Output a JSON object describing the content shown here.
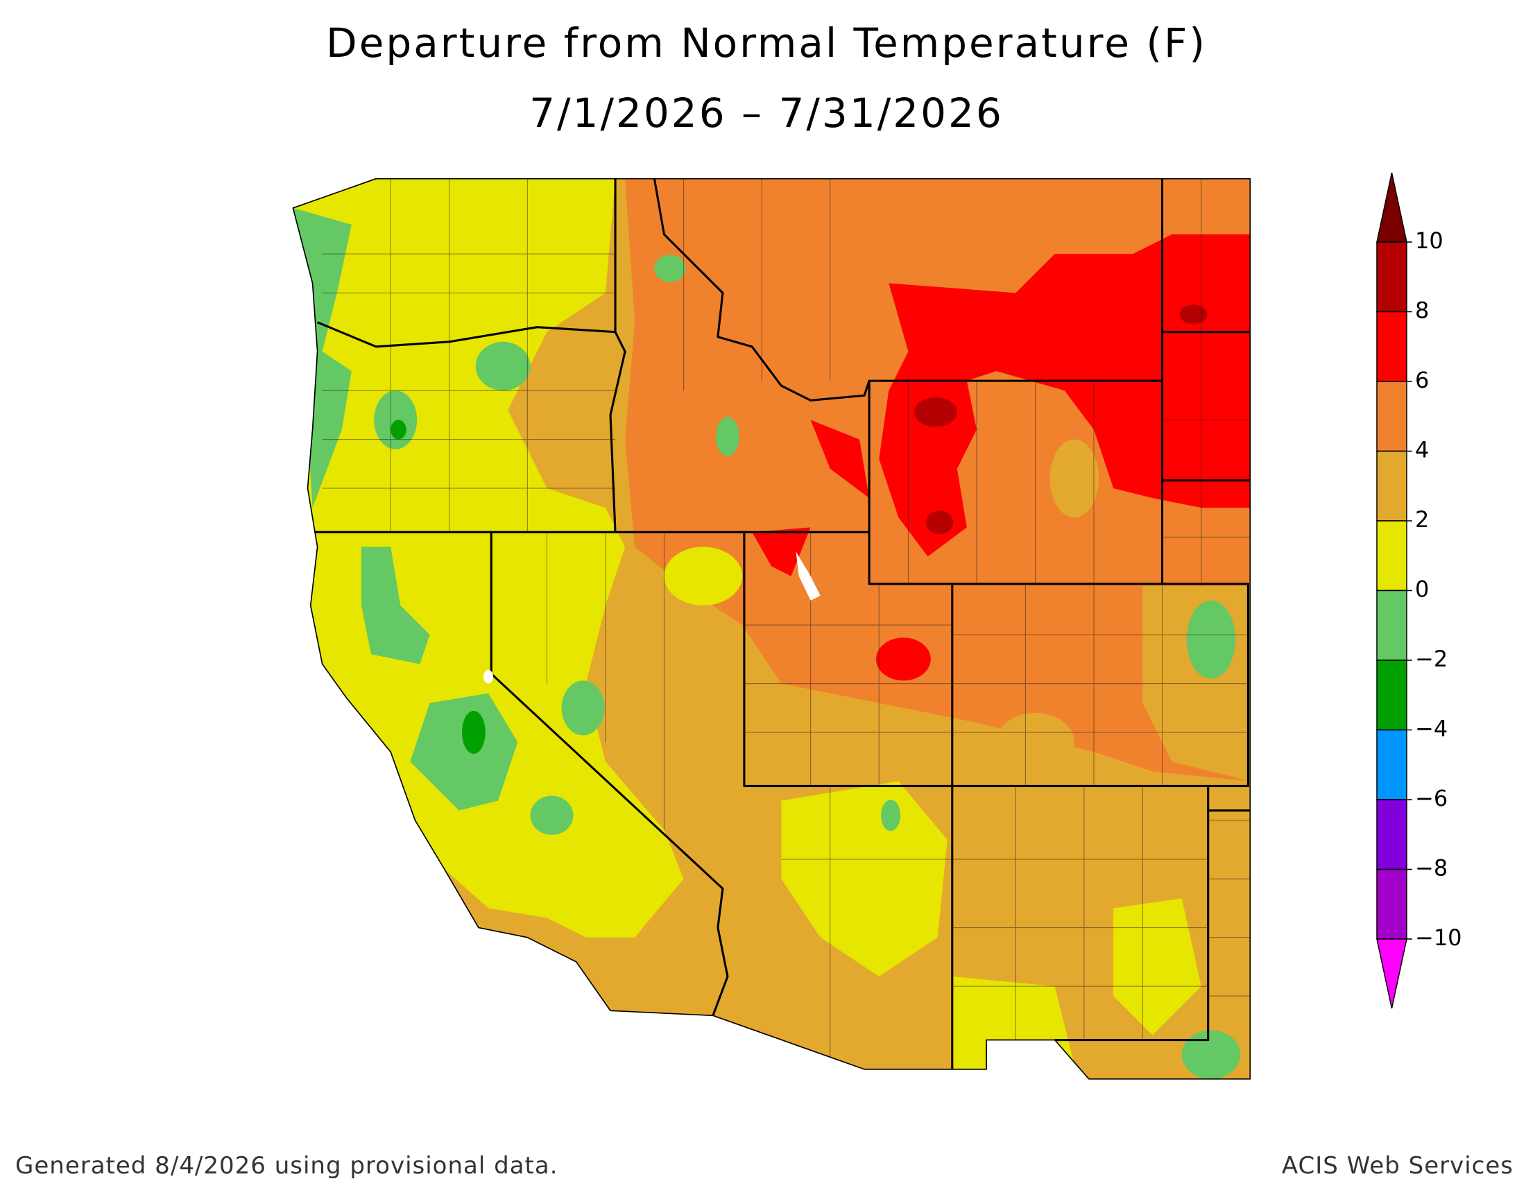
{
  "title": [
    "Departure from Normal Temperature (F)",
    "7/1/2026 – 7/31/2026"
  ],
  "legend": {
    "ticks": [
      10,
      8,
      6,
      4,
      2,
      0,
      {
        "value": -2,
        "label": "−2"
      },
      {
        "value": -4,
        "label": "−4"
      },
      {
        "value": -6,
        "label": "−6"
      },
      {
        "value": -8,
        "label": "−8"
      },
      {
        "value": -10,
        "label": "−10"
      }
    ],
    "colors": [
      "#7a0000",
      "#b40000",
      "#ff0000",
      "#f0822d",
      "#e3a82e",
      "#e6e600",
      "#64c864",
      "#00a000",
      "#0096ff",
      "#8200dc",
      "#a000c8",
      "#ff00ff"
    ]
  },
  "footer": {
    "left": "Generated 8/4/2026 using provisional data.",
    "right": "ACIS Web Services"
  }
}
